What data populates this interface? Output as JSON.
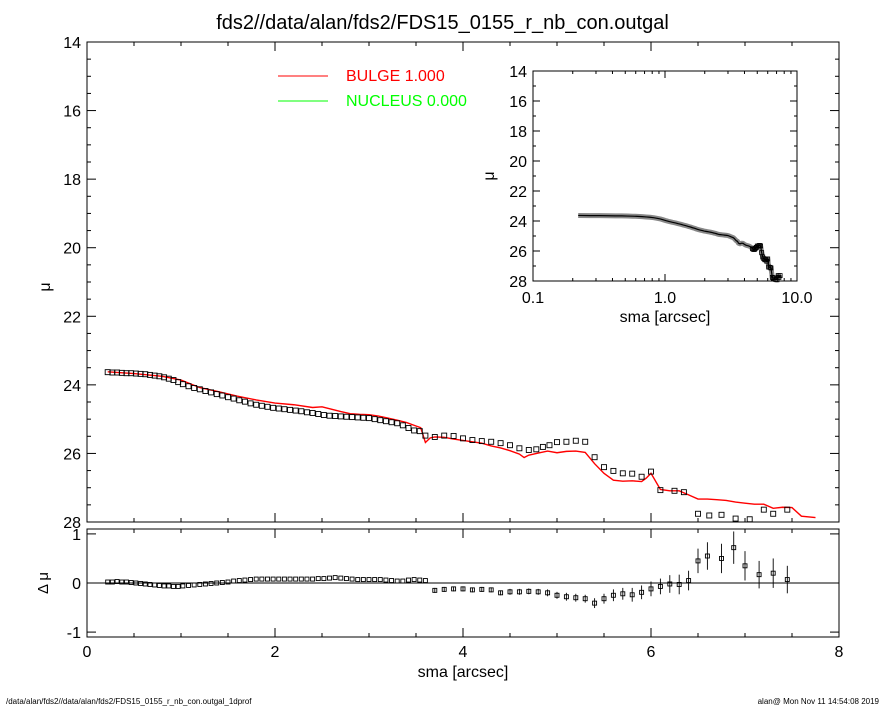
{
  "page": {
    "title": "fds2//data/alan/fds2/FDS15_0155_r_nb_con.outgal",
    "footer_left": "/data/alan/fds2//data/alan/fds2/FDS15_0155_r_nb_con.outgal_1dprof",
    "footer_right": "alan@  Mon Nov 11 14:54:08 2019"
  },
  "colors": {
    "bulge": "#ff0000",
    "nucleus": "#00ff00",
    "data": "#000000"
  },
  "chart_data": [
    {
      "id": "main",
      "type": "scatter",
      "ylabel": "μ",
      "xlim": [
        0,
        8
      ],
      "ylim": [
        28,
        14
      ],
      "yticks": [
        14,
        16,
        18,
        20,
        22,
        24,
        26,
        28
      ],
      "legend": [
        {
          "name": "BULGE",
          "value": "1.000",
          "color": "#ff0000"
        },
        {
          "name": "NUCLEUS",
          "value": "0.000",
          "color": "#00ff00"
        }
      ],
      "observed": [
        [
          0.22,
          23.63
        ],
        [
          0.27,
          23.64
        ],
        [
          0.32,
          23.64
        ],
        [
          0.37,
          23.65
        ],
        [
          0.42,
          23.66
        ],
        [
          0.47,
          23.66
        ],
        [
          0.52,
          23.67
        ],
        [
          0.57,
          23.68
        ],
        [
          0.62,
          23.69
        ],
        [
          0.67,
          23.71
        ],
        [
          0.72,
          23.73
        ],
        [
          0.77,
          23.75
        ],
        [
          0.82,
          23.78
        ],
        [
          0.87,
          23.82
        ],
        [
          0.92,
          23.86
        ],
        [
          0.97,
          23.92
        ],
        [
          1.02,
          23.98
        ],
        [
          1.08,
          24.04
        ],
        [
          1.14,
          24.09
        ],
        [
          1.2,
          24.13
        ],
        [
          1.26,
          24.18
        ],
        [
          1.32,
          24.22
        ],
        [
          1.38,
          24.27
        ],
        [
          1.44,
          24.31
        ],
        [
          1.5,
          24.36
        ],
        [
          1.56,
          24.4
        ],
        [
          1.62,
          24.45
        ],
        [
          1.68,
          24.49
        ],
        [
          1.74,
          24.54
        ],
        [
          1.8,
          24.58
        ],
        [
          1.86,
          24.61
        ],
        [
          1.92,
          24.64
        ],
        [
          1.98,
          24.67
        ],
        [
          2.04,
          24.69
        ],
        [
          2.1,
          24.71
        ],
        [
          2.16,
          24.73
        ],
        [
          2.22,
          24.75
        ],
        [
          2.28,
          24.77
        ],
        [
          2.34,
          24.8
        ],
        [
          2.4,
          24.82
        ],
        [
          2.46,
          24.85
        ],
        [
          2.52,
          24.88
        ],
        [
          2.58,
          24.9
        ],
        [
          2.64,
          24.91
        ],
        [
          2.7,
          24.92
        ],
        [
          2.76,
          24.93
        ],
        [
          2.82,
          24.94
        ],
        [
          2.88,
          24.95
        ],
        [
          2.94,
          24.96
        ],
        [
          3.0,
          24.97
        ],
        [
          3.06,
          25.0
        ],
        [
          3.12,
          25.03
        ],
        [
          3.18,
          25.06
        ],
        [
          3.24,
          25.09
        ],
        [
          3.3,
          25.12
        ],
        [
          3.36,
          25.18
        ],
        [
          3.42,
          25.26
        ],
        [
          3.48,
          25.33
        ],
        [
          3.54,
          25.35
        ],
        [
          3.6,
          25.48
        ],
        [
          3.7,
          25.52
        ],
        [
          3.8,
          25.48
        ],
        [
          3.9,
          25.49
        ],
        [
          4.0,
          25.56
        ],
        [
          4.1,
          25.61
        ],
        [
          4.2,
          25.64
        ],
        [
          4.3,
          25.66
        ],
        [
          4.4,
          25.7
        ],
        [
          4.5,
          25.76
        ],
        [
          4.6,
          25.85
        ],
        [
          4.7,
          25.9
        ],
        [
          4.78,
          25.88
        ],
        [
          4.85,
          25.81
        ],
        [
          4.92,
          25.76
        ],
        [
          5.0,
          25.67
        ],
        [
          5.1,
          25.66
        ],
        [
          5.2,
          25.63
        ],
        [
          5.3,
          25.66
        ],
        [
          5.4,
          26.11
        ],
        [
          5.5,
          26.4
        ],
        [
          5.6,
          26.51
        ],
        [
          5.7,
          26.58
        ],
        [
          5.8,
          26.59
        ],
        [
          5.9,
          26.68
        ],
        [
          6.0,
          26.53
        ],
        [
          6.1,
          27.07
        ],
        [
          6.25,
          27.09
        ],
        [
          6.35,
          27.13
        ],
        [
          6.5,
          27.76
        ],
        [
          6.62,
          27.81
        ],
        [
          6.75,
          27.79
        ],
        [
          6.9,
          27.9
        ],
        [
          7.05,
          27.92
        ],
        [
          7.2,
          27.64
        ],
        [
          7.3,
          27.76
        ],
        [
          7.45,
          27.64
        ]
      ],
      "bulge_model": [
        [
          0.22,
          23.62
        ],
        [
          0.5,
          23.67
        ],
        [
          0.8,
          23.75
        ],
        [
          1.0,
          23.86
        ],
        [
          1.2,
          24.08
        ],
        [
          1.4,
          24.2
        ],
        [
          1.6,
          24.33
        ],
        [
          1.8,
          24.44
        ],
        [
          2.0,
          24.53
        ],
        [
          2.2,
          24.58
        ],
        [
          2.4,
          24.66
        ],
        [
          2.5,
          24.64
        ],
        [
          2.6,
          24.71
        ],
        [
          2.7,
          24.78
        ],
        [
          2.8,
          24.84
        ],
        [
          2.9,
          24.86
        ],
        [
          3.0,
          24.87
        ],
        [
          3.1,
          24.91
        ],
        [
          3.2,
          24.97
        ],
        [
          3.3,
          25.03
        ],
        [
          3.4,
          25.1
        ],
        [
          3.5,
          25.2
        ],
        [
          3.55,
          25.25
        ],
        [
          3.6,
          25.68
        ],
        [
          3.65,
          25.55
        ],
        [
          3.7,
          25.52
        ],
        [
          3.8,
          25.53
        ],
        [
          3.9,
          25.58
        ],
        [
          4.0,
          25.62
        ],
        [
          4.1,
          25.66
        ],
        [
          4.2,
          25.7
        ],
        [
          4.3,
          25.78
        ],
        [
          4.4,
          25.84
        ],
        [
          4.5,
          25.92
        ],
        [
          4.6,
          26.02
        ],
        [
          4.65,
          26.12
        ],
        [
          4.7,
          26.05
        ],
        [
          4.8,
          25.99
        ],
        [
          4.9,
          25.93
        ],
        [
          5.0,
          25.98
        ],
        [
          5.1,
          25.94
        ],
        [
          5.2,
          25.93
        ],
        [
          5.3,
          25.97
        ],
        [
          5.4,
          26.3
        ],
        [
          5.5,
          26.58
        ],
        [
          5.6,
          26.78
        ],
        [
          5.7,
          26.81
        ],
        [
          5.8,
          26.8
        ],
        [
          5.9,
          26.82
        ],
        [
          5.95,
          26.72
        ],
        [
          6.0,
          26.58
        ],
        [
          6.1,
          27.05
        ],
        [
          6.2,
          27.09
        ],
        [
          6.3,
          27.09
        ],
        [
          6.4,
          27.21
        ],
        [
          6.5,
          27.33
        ],
        [
          6.6,
          27.33
        ],
        [
          6.7,
          27.35
        ],
        [
          6.8,
          27.37
        ],
        [
          6.9,
          27.42
        ],
        [
          7.0,
          27.45
        ],
        [
          7.1,
          27.48
        ],
        [
          7.2,
          27.48
        ],
        [
          7.3,
          27.6
        ],
        [
          7.4,
          27.57
        ],
        [
          7.5,
          27.58
        ],
        [
          7.6,
          27.83
        ],
        [
          7.75,
          27.87
        ]
      ]
    },
    {
      "id": "residual",
      "type": "scatter",
      "xlabel": "sma [arcsec]",
      "ylabel": "Δ μ",
      "xlim": [
        0,
        8
      ],
      "ylim": [
        -1.1,
        1.1
      ],
      "xticks": [
        0,
        2,
        4,
        6,
        8
      ],
      "yticks": [
        -1,
        0,
        1
      ],
      "reference_line": 0,
      "points": [
        [
          0.22,
          0.02,
          0.01
        ],
        [
          0.27,
          0.02,
          0.01
        ],
        [
          0.32,
          0.03,
          0.01
        ],
        [
          0.37,
          0.02,
          0.01
        ],
        [
          0.42,
          0.02,
          0.01
        ],
        [
          0.47,
          0.01,
          0.01
        ],
        [
          0.52,
          0.0,
          0.01
        ],
        [
          0.57,
          -0.01,
          0.01
        ],
        [
          0.62,
          -0.02,
          0.01
        ],
        [
          0.67,
          -0.03,
          0.01
        ],
        [
          0.72,
          -0.04,
          0.01
        ],
        [
          0.77,
          -0.05,
          0.01
        ],
        [
          0.82,
          -0.06,
          0.01
        ],
        [
          0.87,
          -0.06,
          0.01
        ],
        [
          0.92,
          -0.07,
          0.01
        ],
        [
          0.97,
          -0.07,
          0.01
        ],
        [
          1.02,
          -0.06,
          0.01
        ],
        [
          1.08,
          -0.05,
          0.01
        ],
        [
          1.14,
          -0.04,
          0.01
        ],
        [
          1.2,
          -0.03,
          0.01
        ],
        [
          1.26,
          -0.02,
          0.01
        ],
        [
          1.32,
          -0.01,
          0.01
        ],
        [
          1.38,
          0.0,
          0.01
        ],
        [
          1.44,
          0.01,
          0.01
        ],
        [
          1.5,
          0.02,
          0.01
        ],
        [
          1.56,
          0.04,
          0.01
        ],
        [
          1.62,
          0.05,
          0.01
        ],
        [
          1.68,
          0.06,
          0.01
        ],
        [
          1.74,
          0.07,
          0.01
        ],
        [
          1.8,
          0.08,
          0.01
        ],
        [
          1.86,
          0.08,
          0.01
        ],
        [
          1.92,
          0.08,
          0.01
        ],
        [
          1.98,
          0.08,
          0.01
        ],
        [
          2.04,
          0.08,
          0.01
        ],
        [
          2.1,
          0.08,
          0.01
        ],
        [
          2.16,
          0.08,
          0.01
        ],
        [
          2.22,
          0.08,
          0.01
        ],
        [
          2.28,
          0.08,
          0.01
        ],
        [
          2.34,
          0.08,
          0.01
        ],
        [
          2.4,
          0.08,
          0.01
        ],
        [
          2.46,
          0.09,
          0.01
        ],
        [
          2.52,
          0.09,
          0.01
        ],
        [
          2.58,
          0.1,
          0.01
        ],
        [
          2.64,
          0.11,
          0.01
        ],
        [
          2.7,
          0.1,
          0.01
        ],
        [
          2.76,
          0.09,
          0.01
        ],
        [
          2.82,
          0.08,
          0.01
        ],
        [
          2.88,
          0.07,
          0.01
        ],
        [
          2.94,
          0.07,
          0.01
        ],
        [
          3.0,
          0.07,
          0.01
        ],
        [
          3.06,
          0.07,
          0.01
        ],
        [
          3.12,
          0.07,
          0.01
        ],
        [
          3.18,
          0.06,
          0.02
        ],
        [
          3.24,
          0.05,
          0.02
        ],
        [
          3.3,
          0.04,
          0.02
        ],
        [
          3.36,
          0.04,
          0.02
        ],
        [
          3.42,
          0.06,
          0.02
        ],
        [
          3.48,
          0.07,
          0.02
        ],
        [
          3.54,
          0.06,
          0.02
        ],
        [
          3.6,
          0.05,
          0.02
        ],
        [
          3.7,
          -0.15,
          0.05
        ],
        [
          3.8,
          -0.13,
          0.05
        ],
        [
          3.9,
          -0.12,
          0.05
        ],
        [
          4.0,
          -0.12,
          0.05
        ],
        [
          4.1,
          -0.14,
          0.05
        ],
        [
          4.2,
          -0.13,
          0.05
        ],
        [
          4.3,
          -0.14,
          0.05
        ],
        [
          4.4,
          -0.2,
          0.05
        ],
        [
          4.5,
          -0.18,
          0.06
        ],
        [
          4.6,
          -0.18,
          0.06
        ],
        [
          4.7,
          -0.17,
          0.06
        ],
        [
          4.8,
          -0.18,
          0.06
        ],
        [
          4.9,
          -0.2,
          0.07
        ],
        [
          5.0,
          -0.25,
          0.07
        ],
        [
          5.1,
          -0.28,
          0.08
        ],
        [
          5.2,
          -0.3,
          0.08
        ],
        [
          5.3,
          -0.32,
          0.08
        ],
        [
          5.4,
          -0.41,
          0.1
        ],
        [
          5.5,
          -0.32,
          0.1
        ],
        [
          5.6,
          -0.25,
          0.12
        ],
        [
          5.7,
          -0.22,
          0.12
        ],
        [
          5.8,
          -0.24,
          0.14
        ],
        [
          5.9,
          -0.19,
          0.14
        ],
        [
          6.0,
          -0.12,
          0.15
        ],
        [
          6.1,
          -0.07,
          0.16
        ],
        [
          6.2,
          -0.02,
          0.18
        ],
        [
          6.3,
          -0.03,
          0.2
        ],
        [
          6.4,
          0.05,
          0.2
        ],
        [
          6.5,
          0.45,
          0.25
        ],
        [
          6.6,
          0.55,
          0.28
        ],
        [
          6.75,
          0.5,
          0.3
        ],
        [
          6.88,
          0.72,
          0.33
        ],
        [
          7.0,
          0.35,
          0.3
        ],
        [
          7.15,
          0.17,
          0.28
        ],
        [
          7.3,
          0.2,
          0.3
        ],
        [
          7.45,
          0.07,
          0.28
        ]
      ]
    },
    {
      "id": "inset",
      "type": "line",
      "xlabel": "sma [arcsec]",
      "ylabel": "μ",
      "xscale": "log",
      "xlim": [
        0.1,
        10.0
      ],
      "ylim": [
        28,
        14
      ],
      "xticklabels": [
        "0.1",
        "1.0",
        "10.0"
      ],
      "yticks": [
        14,
        16,
        18,
        20,
        22,
        24,
        26,
        28
      ]
    }
  ]
}
